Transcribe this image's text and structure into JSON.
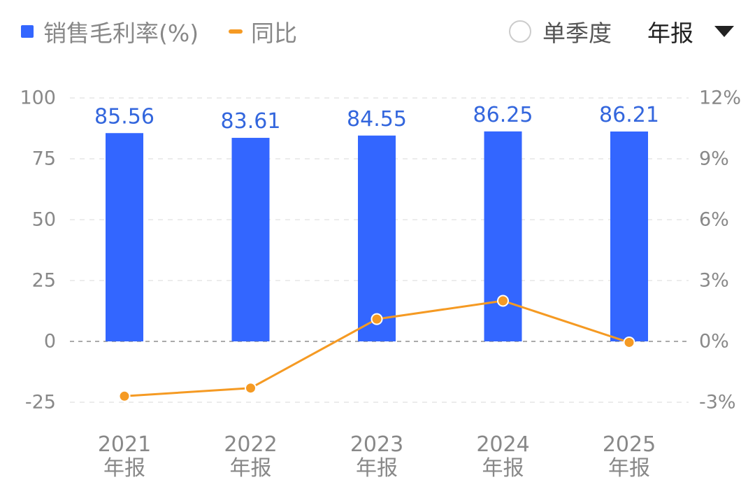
{
  "legend": {
    "bar_series": "销售毛利率(%)",
    "line_series": "同比"
  },
  "controls": {
    "quarter_toggle_label": "单季度",
    "period_label": "年报"
  },
  "colors": {
    "bar": "#3366ff",
    "line": "#f59a23",
    "grid": "#e6e6e6",
    "zero_line": "#aaaaaa"
  },
  "chart_data": {
    "type": "bar",
    "categories": [
      "2021\n年报",
      "2022\n年报",
      "2023\n年报",
      "2024\n年报",
      "2025\n年报"
    ],
    "series": [
      {
        "name": "销售毛利率(%)",
        "type": "bar",
        "axis": "left",
        "values": [
          85.56,
          83.61,
          84.55,
          86.25,
          86.21
        ],
        "labels": [
          "85.56",
          "83.61",
          "84.55",
          "86.25",
          "86.21"
        ]
      },
      {
        "name": "同比",
        "type": "line",
        "axis": "right",
        "values": [
          -2.7,
          -2.3,
          1.1,
          2.0,
          -0.05
        ]
      }
    ],
    "y_left": {
      "ticks": [
        100,
        75,
        50,
        25,
        0,
        -25
      ],
      "tick_labels": [
        "100",
        "75",
        "50",
        "25",
        "0",
        "-25"
      ],
      "ylim": [
        -25,
        100
      ]
    },
    "y_right": {
      "ticks": [
        12,
        9,
        6,
        3,
        0,
        -3
      ],
      "tick_labels": [
        "12%",
        "9%",
        "6%",
        "3%",
        "0%",
        "-3%"
      ],
      "ylim": [
        -3,
        12
      ]
    },
    "grid": true,
    "legend_position": "top-left"
  }
}
